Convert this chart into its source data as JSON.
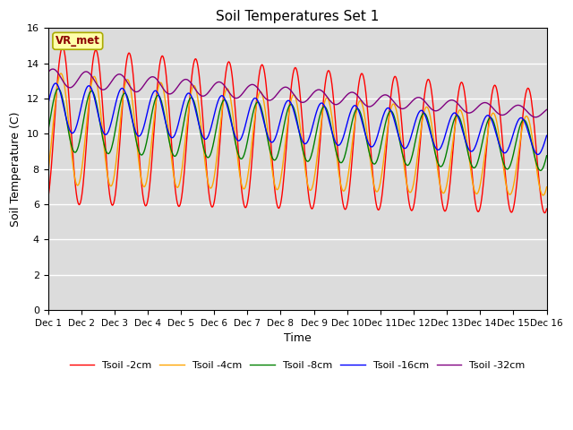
{
  "title": "Soil Temperatures Set 1",
  "xlabel": "Time",
  "ylabel": "Soil Temperature (C)",
  "ylim": [
    0,
    16
  ],
  "yticks": [
    0,
    2,
    4,
    6,
    8,
    10,
    12,
    14,
    16
  ],
  "xtick_labels": [
    "Dec 1",
    "Dec 2",
    "Dec 3",
    "Dec 4",
    "Dec 5",
    "Dec 6",
    "Dec 7",
    "Dec 8",
    "Dec 9",
    "Dec 10",
    "Dec 11",
    "Dec 12",
    "Dec 13",
    "Dec 14",
    "Dec 15",
    "Dec 16"
  ],
  "legend_labels": [
    "Tsoil -2cm",
    "Tsoil -4cm",
    "Tsoil -8cm",
    "Tsoil -16cm",
    "Tsoil -32cm"
  ],
  "colors": [
    "red",
    "orange",
    "green",
    "blue",
    "purple"
  ],
  "vr_met_label": "VR_met",
  "bg_color": "#dcdcdc",
  "annotation_facecolor": "#ffffaa",
  "annotation_edgecolor": "#aaaa00"
}
